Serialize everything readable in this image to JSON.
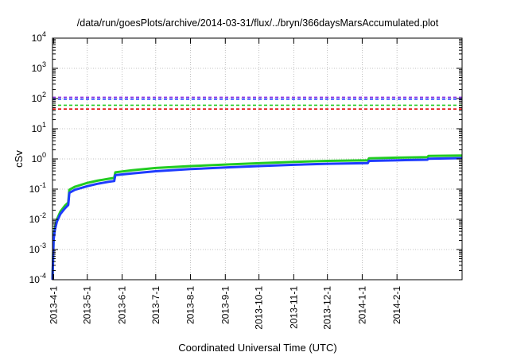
{
  "chart_data": {
    "type": "line",
    "title": "/data/run/goesPlots/archive/2014-03-31/flux/../bryn/366daysMarsAccumulated.plot",
    "xlabel": "Coordinated Universal Time (UTC)",
    "ylabel": "cSv",
    "y_scale": "log",
    "ylim": [
      0.0001,
      10000
    ],
    "xlim": [
      "2013-03-31",
      "2014-03-31"
    ],
    "grid": true,
    "y_ticks": [
      {
        "value": 0.0001,
        "base": "10",
        "exp": "-4"
      },
      {
        "value": 0.001,
        "base": "10",
        "exp": "-3"
      },
      {
        "value": 0.01,
        "base": "10",
        "exp": "-2"
      },
      {
        "value": 0.1,
        "base": "10",
        "exp": "-1"
      },
      {
        "value": 1,
        "base": "10",
        "exp": "0"
      },
      {
        "value": 10,
        "base": "10",
        "exp": "1"
      },
      {
        "value": 100,
        "base": "10",
        "exp": "2"
      },
      {
        "value": 1000,
        "base": "10",
        "exp": "3"
      },
      {
        "value": 10000,
        "base": "10",
        "exp": "4"
      }
    ],
    "x_ticks": [
      {
        "date": "2013-04-01",
        "label": "2013-4-1"
      },
      {
        "date": "2013-05-01",
        "label": "2013-5-1"
      },
      {
        "date": "2013-06-01",
        "label": "2013-6-1"
      },
      {
        "date": "2013-07-01",
        "label": "2013-7-1"
      },
      {
        "date": "2013-08-01",
        "label": "2013-8-1"
      },
      {
        "date": "2013-09-01",
        "label": "2013-9-1"
      },
      {
        "date": "2013-10-01",
        "label": "2013-10-1"
      },
      {
        "date": "2013-11-01",
        "label": "2013-11-1"
      },
      {
        "date": "2013-12-01",
        "label": "2013-12-1"
      },
      {
        "date": "2014-01-01",
        "label": "2014-1-1"
      },
      {
        "date": "2014-02-01",
        "label": "2014-2-1"
      }
    ],
    "thresholds": [
      {
        "value": 110,
        "color": "#8a2be2"
      },
      {
        "value": 95,
        "color": "#1e3cff"
      },
      {
        "value": 60,
        "color": "#22cc22"
      },
      {
        "value": 45,
        "color": "#e00000"
      }
    ],
    "series": [
      {
        "color": "#22cc22",
        "points": [
          {
            "x": "2013-03-31",
            "y": 0.0001
          },
          {
            "x": "2013-04-01",
            "y": 0.0025
          },
          {
            "x": "2013-04-02",
            "y": 0.005
          },
          {
            "x": "2013-04-04",
            "y": 0.01
          },
          {
            "x": "2013-04-07",
            "y": 0.018
          },
          {
            "x": "2013-04-11",
            "y": 0.028
          },
          {
            "x": "2013-04-14",
            "y": 0.036
          },
          {
            "x": "2013-04-15",
            "y": 0.095
          },
          {
            "x": "2013-04-20",
            "y": 0.12
          },
          {
            "x": "2013-05-01",
            "y": 0.16
          },
          {
            "x": "2013-05-10",
            "y": 0.19
          },
          {
            "x": "2013-05-20",
            "y": 0.22
          },
          {
            "x": "2013-05-25",
            "y": 0.235
          },
          {
            "x": "2013-05-26",
            "y": 0.36
          },
          {
            "x": "2013-06-10",
            "y": 0.42
          },
          {
            "x": "2013-07-01",
            "y": 0.5
          },
          {
            "x": "2013-08-01",
            "y": 0.58
          },
          {
            "x": "2013-09-01",
            "y": 0.65
          },
          {
            "x": "2013-10-01",
            "y": 0.72
          },
          {
            "x": "2013-11-01",
            "y": 0.8
          },
          {
            "x": "2013-12-01",
            "y": 0.86
          },
          {
            "x": "2014-01-06",
            "y": 0.9
          },
          {
            "x": "2014-01-07",
            "y": 1.05
          },
          {
            "x": "2014-02-01",
            "y": 1.1
          },
          {
            "x": "2014-02-28",
            "y": 1.15
          },
          {
            "x": "2014-03-01",
            "y": 1.25
          },
          {
            "x": "2014-03-31",
            "y": 1.3
          }
        ]
      },
      {
        "color": "#1e3cff",
        "points": [
          {
            "x": "2013-03-31",
            "y": 0.0001
          },
          {
            "x": "2013-04-01",
            "y": 0.0021
          },
          {
            "x": "2013-04-02",
            "y": 0.0042
          },
          {
            "x": "2013-04-04",
            "y": 0.0085
          },
          {
            "x": "2013-04-07",
            "y": 0.015
          },
          {
            "x": "2013-04-11",
            "y": 0.023
          },
          {
            "x": "2013-04-14",
            "y": 0.03
          },
          {
            "x": "2013-04-15",
            "y": 0.075
          },
          {
            "x": "2013-04-20",
            "y": 0.095
          },
          {
            "x": "2013-05-01",
            "y": 0.125
          },
          {
            "x": "2013-05-10",
            "y": 0.15
          },
          {
            "x": "2013-05-20",
            "y": 0.175
          },
          {
            "x": "2013-05-25",
            "y": 0.185
          },
          {
            "x": "2013-05-26",
            "y": 0.29
          },
          {
            "x": "2013-06-10",
            "y": 0.33
          },
          {
            "x": "2013-07-01",
            "y": 0.39
          },
          {
            "x": "2013-08-01",
            "y": 0.46
          },
          {
            "x": "2013-09-01",
            "y": 0.52
          },
          {
            "x": "2013-10-01",
            "y": 0.58
          },
          {
            "x": "2013-11-01",
            "y": 0.64
          },
          {
            "x": "2013-12-01",
            "y": 0.69
          },
          {
            "x": "2014-01-06",
            "y": 0.73
          },
          {
            "x": "2014-01-07",
            "y": 0.86
          },
          {
            "x": "2014-02-01",
            "y": 0.9
          },
          {
            "x": "2014-02-28",
            "y": 0.94
          },
          {
            "x": "2014-03-01",
            "y": 1.02
          },
          {
            "x": "2014-03-31",
            "y": 1.06
          }
        ]
      }
    ]
  }
}
